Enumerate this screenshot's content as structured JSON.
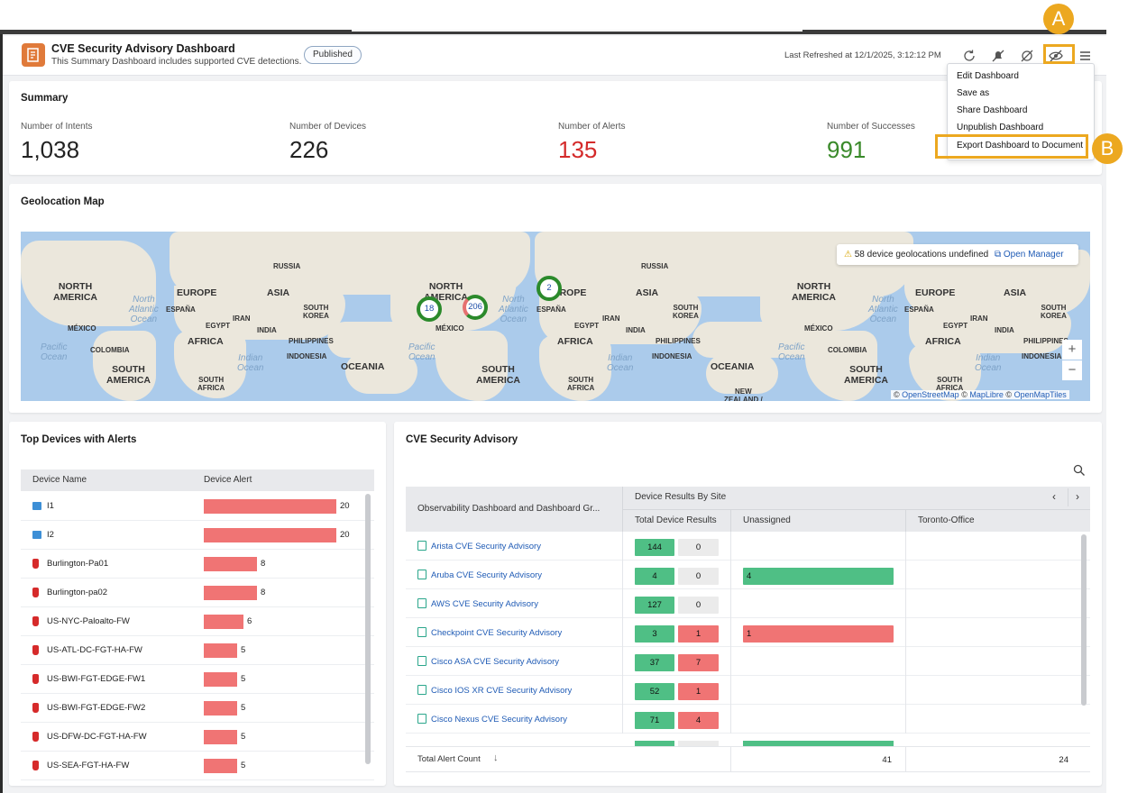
{
  "header": {
    "title": "CVE Security Advisory Dashboard",
    "subtitle": "This Summary Dashboard includes supported CVE detections.",
    "status": "Published",
    "last_refreshed": "Last Refreshed at 12/1/2025, 3:12:12 PM",
    "icons": [
      "refresh-icon",
      "alert-mute-icon",
      "hide-icon",
      "eye-slash-icon",
      "menu-icon"
    ]
  },
  "callouts": {
    "a": "A",
    "b": "B",
    "highlight_color": "#eca820"
  },
  "menu": {
    "items": [
      "Edit Dashboard",
      "Save as",
      "Share Dashboard",
      "Unpublish Dashboard",
      "Export Dashboard to Document"
    ]
  },
  "summary": {
    "title": "Summary",
    "stats": [
      {
        "label": "Number of Intents",
        "value": "1,038",
        "color": "#222222"
      },
      {
        "label": "Number of Devices",
        "value": "226",
        "color": "#222222"
      },
      {
        "label": "Number of Alerts",
        "value": "135",
        "color": "#d42a2a"
      },
      {
        "label": "Number of Successes",
        "value": "991",
        "color": "#3a8a2a"
      }
    ]
  },
  "geo": {
    "title": "Geolocation Map",
    "undefined_text": "58 device geolocations undefined",
    "open_manager": "Open Manager",
    "clusters": [
      "18",
      "206",
      "2"
    ],
    "labels": {
      "russia": "RUSSIA",
      "north_america": "NORTH\nAMERICA",
      "europe": "EUROPE",
      "asia": "ASIA",
      "espana": "ESPAÑA",
      "iran": "IRAN",
      "egypt": "EGYPT",
      "south_korea": "SOUTH\nKOREA",
      "india": "INDIA",
      "mexico": "MÉXICO",
      "africa": "AFRICA",
      "philippines": "PHILIPPINES",
      "colombia": "COLOMBIA",
      "indonesia": "INDONESIA",
      "south_america": "SOUTH\nAMERICA",
      "oceania": "OCEANIA",
      "south_africa": "SOUTH\nAFRICA",
      "new_zealand": "NEW\nZEALAND /",
      "north_atlantic": "North\nAtlantic\nOcean",
      "pacific": "Pacific\nOcean",
      "indian": "Indian\nOcean"
    },
    "zoom_in": "+",
    "zoom_out": "−",
    "attribution": {
      "c": "©",
      "osm": "OpenStreetMap",
      "maplibre": "MapLibre",
      "omt": "OpenMapTiles"
    }
  },
  "top_devices": {
    "title": "Top Devices with Alerts",
    "col_name": "Device Name",
    "col_alert": "Device Alert",
    "rows": [
      {
        "name": "I1",
        "value": 20,
        "type": "switch"
      },
      {
        "name": "I2",
        "value": 20,
        "type": "switch"
      },
      {
        "name": "Burlington-Pa01",
        "value": 8,
        "type": "firewall"
      },
      {
        "name": "Burlington-pa02",
        "value": 8,
        "type": "firewall"
      },
      {
        "name": "US-NYC-Paloalto-FW",
        "value": 6,
        "type": "firewall"
      },
      {
        "name": "US-ATL-DC-FGT-HA-FW",
        "value": 5,
        "type": "firewall"
      },
      {
        "name": "US-BWI-FGT-EDGE-FW1",
        "value": 5,
        "type": "firewall"
      },
      {
        "name": "US-BWI-FGT-EDGE-FW2",
        "value": 5,
        "type": "firewall"
      },
      {
        "name": "US-DFW-DC-FGT-HA-FW",
        "value": 5,
        "type": "firewall"
      },
      {
        "name": "US-SEA-FGT-HA-FW",
        "value": 5,
        "type": "firewall"
      }
    ]
  },
  "cve": {
    "title": "CVE Security Advisory",
    "col_group": "Observability Dashboard and Dashboard Gr...",
    "col_site_group": "Device Results By Site",
    "col_total": "Total Device Results",
    "col_unassigned": "Unassigned",
    "col_toronto": "Toronto-Office",
    "rows": [
      {
        "name": "Arista CVE Security Advisory",
        "green": "144",
        "second": "0",
        "second_red": false,
        "unassigned": null
      },
      {
        "name": "Aruba CVE Security Advisory",
        "green": "4",
        "second": "0",
        "second_red": false,
        "unassigned": {
          "value": "4",
          "color": "green"
        }
      },
      {
        "name": "AWS CVE Security Advisory",
        "green": "127",
        "second": "0",
        "second_red": false,
        "unassigned": null
      },
      {
        "name": "Checkpoint CVE Security Advisory",
        "green": "3",
        "second": "1",
        "second_red": true,
        "unassigned": {
          "value": "1",
          "color": "red"
        }
      },
      {
        "name": "Cisco ASA CVE Security Advisory",
        "green": "37",
        "second": "7",
        "second_red": true,
        "unassigned": null
      },
      {
        "name": "Cisco IOS XR CVE Security Advisory",
        "green": "52",
        "second": "1",
        "second_red": true,
        "unassigned": null
      },
      {
        "name": "Cisco Nexus CVE Security Advisory",
        "green": "71",
        "second": "4",
        "second_red": true,
        "unassigned": null
      }
    ],
    "footer_label": "Total Alert Count",
    "footer_unassigned": "41",
    "footer_toronto": "24"
  }
}
